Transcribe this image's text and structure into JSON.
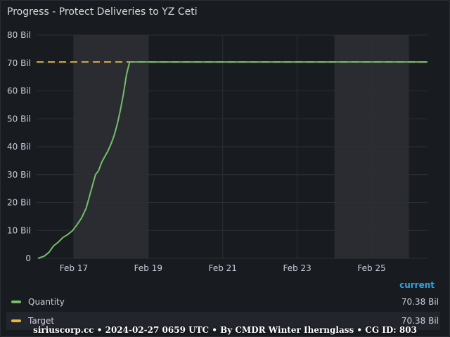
{
  "panel": {
    "title": "Progress - Protect Deliveries to YZ Ceti"
  },
  "chart_data": {
    "type": "line",
    "title": "Progress - Protect Deliveries to YZ Ceti",
    "xlabel": "",
    "ylabel": "",
    "x_range": [
      "2024-02-16",
      "2024-02-26T12:00"
    ],
    "ylim": [
      0,
      80
    ],
    "y_unit": "Bil",
    "y_ticks": [
      "0",
      "10 Bil",
      "20 Bil",
      "30 Bil",
      "40 Bil",
      "50 Bil",
      "60 Bil",
      "70 Bil",
      "80 Bil"
    ],
    "x_ticks": [
      "Feb 17",
      "Feb 19",
      "Feb 21",
      "Feb 23",
      "Feb 25"
    ],
    "grid": true,
    "legend_position": "bottom",
    "shaded_ranges": [
      [
        "2024-02-17",
        "2024-02-19"
      ],
      [
        "2024-02-24",
        "2024-02-26"
      ]
    ],
    "series": [
      {
        "name": "Quantity",
        "color": "#73bf69",
        "style": "solid",
        "points": [
          [
            "2024-02-16T01:00",
            0.0
          ],
          [
            "2024-02-16T05:00",
            0.8
          ],
          [
            "2024-02-16T08:00",
            2.2
          ],
          [
            "2024-02-16T11:00",
            4.5
          ],
          [
            "2024-02-16T14:00",
            5.8
          ],
          [
            "2024-02-16T17:00",
            7.5
          ],
          [
            "2024-02-16T20:00",
            8.5
          ],
          [
            "2024-02-16T23:00",
            9.8
          ],
          [
            "2024-02-17T02:00",
            12.0
          ],
          [
            "2024-02-17T05:00",
            14.5
          ],
          [
            "2024-02-17T08:00",
            18.0
          ],
          [
            "2024-02-17T10:00",
            22.0
          ],
          [
            "2024-02-17T12:00",
            26.0
          ],
          [
            "2024-02-17T14:00",
            30.0
          ],
          [
            "2024-02-17T16:00",
            31.5
          ],
          [
            "2024-02-17T18:00",
            34.5
          ],
          [
            "2024-02-17T20:00",
            36.5
          ],
          [
            "2024-02-17T22:00",
            38.5
          ],
          [
            "2024-02-18T00:00",
            41.0
          ],
          [
            "2024-02-18T02:00",
            44.0
          ],
          [
            "2024-02-18T04:00",
            48.0
          ],
          [
            "2024-02-18T06:00",
            53.0
          ],
          [
            "2024-02-18T08:00",
            59.0
          ],
          [
            "2024-02-18T10:00",
            66.0
          ],
          [
            "2024-02-18T12:00",
            70.38
          ],
          [
            "2024-02-26T12:00",
            70.38
          ]
        ]
      },
      {
        "name": "Target",
        "color": "#eab839",
        "style": "dashed",
        "points": [
          [
            "2024-02-16",
            70.38
          ],
          [
            "2024-02-26T12:00",
            70.38
          ]
        ]
      }
    ]
  },
  "legend": {
    "header": "current",
    "rows": [
      {
        "name": "Quantity",
        "value": "70.38 Bil",
        "color": "#73bf69"
      },
      {
        "name": "Target",
        "value": "70.38 Bil",
        "color": "#eab839"
      }
    ]
  },
  "footer": {
    "text": "siriuscorp.cc • 2024-02-27 0659 UTC • By CMDR Winter Ihernglass • CG ID: 803"
  }
}
